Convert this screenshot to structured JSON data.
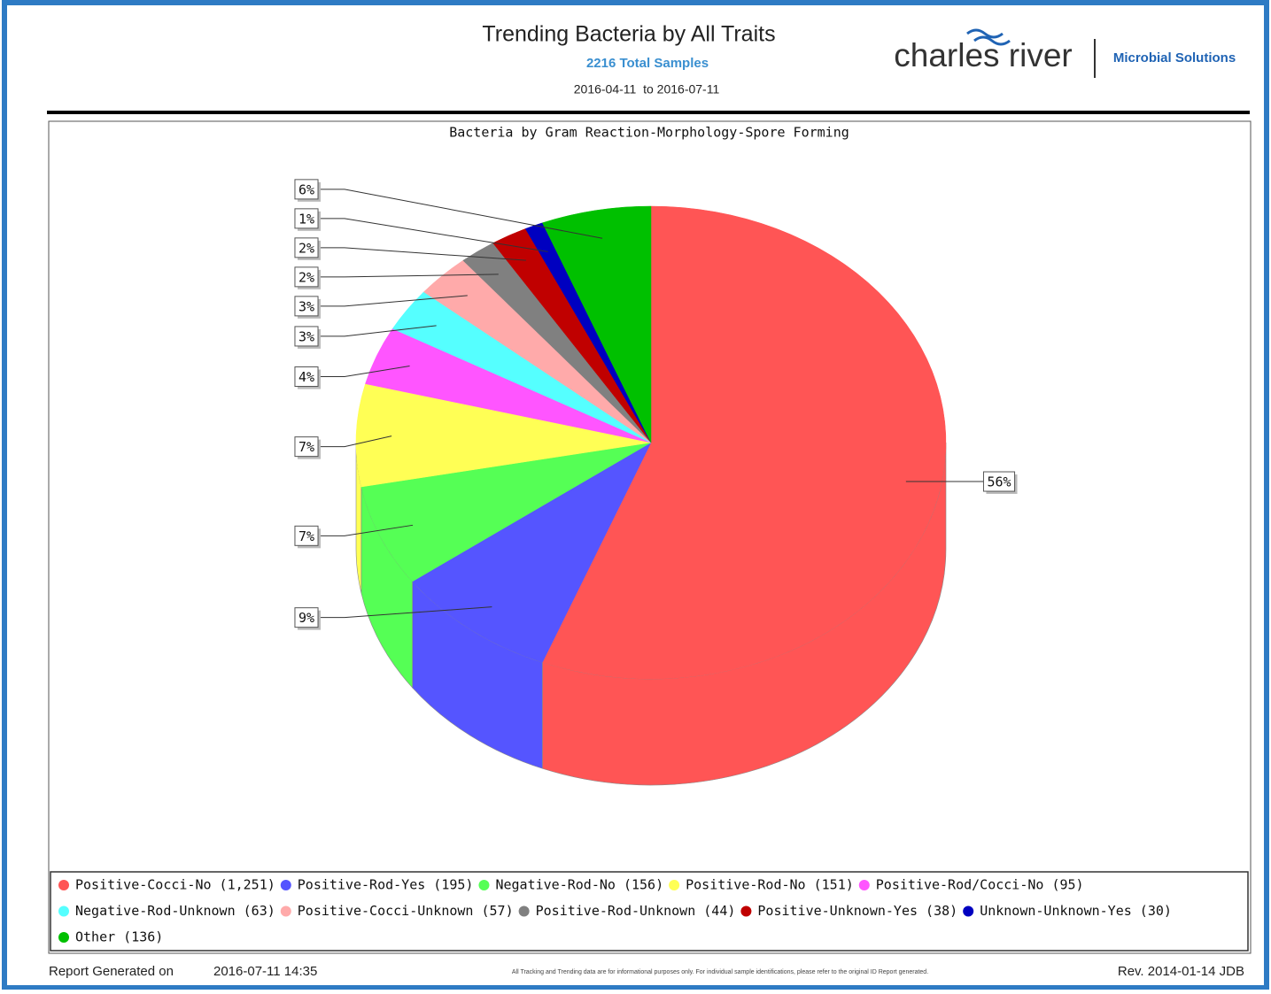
{
  "header": {
    "title": "Trending Bacteria by All Traits",
    "subtitle": "2216 Total Samples",
    "date_range": "2016-04-11  to 2016-07-11"
  },
  "logo": {
    "brand": "charles river",
    "division": "Microbial Solutions"
  },
  "chart_data": {
    "type": "pie",
    "title": "Bacteria by Gram Reaction-Morphology-Spore Forming",
    "categories": [
      "Positive-Cocci-No (1,251)",
      "Positive-Rod-Yes (195)",
      "Negative-Rod-No (156)",
      "Positive-Rod-No (151)",
      "Positive-Rod/Cocci-No (95)",
      "Negative-Rod-Unknown (63)",
      "Positive-Cocci-Unknown (57)",
      "Positive-Rod-Unknown (44)",
      "Positive-Unknown-Yes (38)",
      "Unknown-Unknown-Yes (30)",
      "Other (136)"
    ],
    "values": [
      56,
      9,
      7,
      7,
      4,
      3,
      3,
      2,
      2,
      1,
      6
    ],
    "value_labels": [
      "56%",
      "9%",
      "7%",
      "7%",
      "4%",
      "3%",
      "3%",
      "2%",
      "2%",
      "1%",
      "6%"
    ],
    "colors": [
      "#ff5555",
      "#5555ff",
      "#55ff55",
      "#ffff55",
      "#ff55ff",
      "#55ffff",
      "#ffaaaa",
      "#808080",
      "#c00000",
      "#0000c0",
      "#00c000"
    ],
    "legend": "bottom"
  },
  "footer": {
    "generated_label": "Report Generated on",
    "generated": "2016-07-11 14:35",
    "disclaimer": "All Tracking and Trending data are for informational purposes only. For individual sample identifications, please refer to the original ID Report generated.",
    "revision": "Rev. 2014-01-14 JDB"
  }
}
